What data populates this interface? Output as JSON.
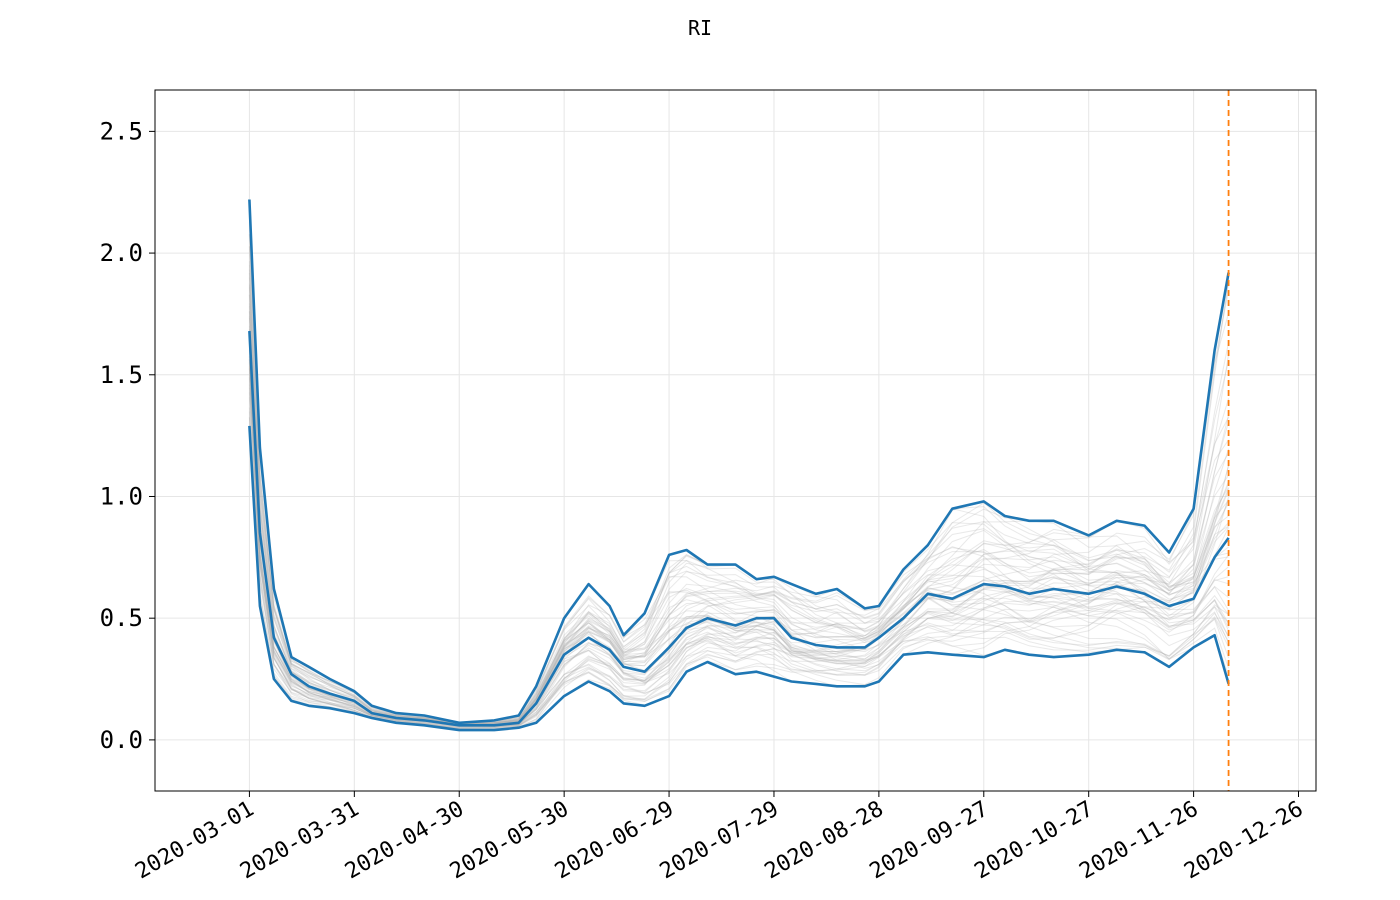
{
  "chart_data": {
    "type": "line",
    "title": "RI",
    "xlabel": "",
    "ylabel": "",
    "x_ticks": [
      "2020-03-01",
      "2020-03-31",
      "2020-04-30",
      "2020-05-30",
      "2020-06-29",
      "2020-07-29",
      "2020-08-28",
      "2020-09-27",
      "2020-10-27",
      "2020-11-26",
      "2020-12-26"
    ],
    "y_ticks": [
      "0.0",
      "0.5",
      "1.0",
      "1.5",
      "2.0",
      "2.5"
    ],
    "xlim": [
      "2020-02-03",
      "2020-12-31"
    ],
    "ylim": [
      -0.21,
      2.67
    ],
    "grid": true,
    "vertical_line": {
      "x": "2020-12-06",
      "color": "#ff7f0e",
      "style": "dashed"
    },
    "colors": {
      "band": "#1f77b4",
      "samples": "#b0b0b0",
      "marker_line": "#ff7f0e"
    },
    "series": [
      {
        "role": "upper",
        "x": [
          "2020-03-01",
          "2020-03-04",
          "2020-03-08",
          "2020-03-13",
          "2020-03-18",
          "2020-03-24",
          "2020-03-31",
          "2020-04-05",
          "2020-04-12",
          "2020-04-20",
          "2020-04-30",
          "2020-05-10",
          "2020-05-17",
          "2020-05-22",
          "2020-05-30",
          "2020-06-06",
          "2020-06-12",
          "2020-06-16",
          "2020-06-22",
          "2020-06-29",
          "2020-07-04",
          "2020-07-10",
          "2020-07-18",
          "2020-07-24",
          "2020-07-29",
          "2020-08-03",
          "2020-08-10",
          "2020-08-16",
          "2020-08-24",
          "2020-08-28",
          "2020-09-04",
          "2020-09-11",
          "2020-09-18",
          "2020-09-27",
          "2020-10-03",
          "2020-10-10",
          "2020-10-17",
          "2020-10-27",
          "2020-11-04",
          "2020-11-12",
          "2020-11-19",
          "2020-11-26",
          "2020-12-02",
          "2020-12-06"
        ],
        "values": [
          2.22,
          1.2,
          0.62,
          0.34,
          0.3,
          0.25,
          0.2,
          0.14,
          0.11,
          0.1,
          0.07,
          0.08,
          0.1,
          0.22,
          0.5,
          0.64,
          0.55,
          0.43,
          0.52,
          0.76,
          0.78,
          0.72,
          0.72,
          0.66,
          0.67,
          0.64,
          0.6,
          0.62,
          0.54,
          0.55,
          0.7,
          0.8,
          0.95,
          0.98,
          0.92,
          0.9,
          0.9,
          0.84,
          0.9,
          0.88,
          0.77,
          0.95,
          1.6,
          1.92
        ]
      },
      {
        "role": "median",
        "x": [
          "2020-03-01",
          "2020-03-04",
          "2020-03-08",
          "2020-03-13",
          "2020-03-18",
          "2020-03-24",
          "2020-03-31",
          "2020-04-05",
          "2020-04-12",
          "2020-04-20",
          "2020-04-30",
          "2020-05-10",
          "2020-05-17",
          "2020-05-22",
          "2020-05-30",
          "2020-06-06",
          "2020-06-12",
          "2020-06-16",
          "2020-06-22",
          "2020-06-29",
          "2020-07-04",
          "2020-07-10",
          "2020-07-18",
          "2020-07-24",
          "2020-07-29",
          "2020-08-03",
          "2020-08-10",
          "2020-08-16",
          "2020-08-24",
          "2020-08-28",
          "2020-09-04",
          "2020-09-11",
          "2020-09-18",
          "2020-09-27",
          "2020-10-03",
          "2020-10-10",
          "2020-10-17",
          "2020-10-27",
          "2020-11-04",
          "2020-11-12",
          "2020-11-19",
          "2020-11-26",
          "2020-12-02",
          "2020-12-06"
        ],
        "values": [
          1.68,
          0.85,
          0.42,
          0.27,
          0.22,
          0.19,
          0.16,
          0.11,
          0.09,
          0.08,
          0.06,
          0.06,
          0.07,
          0.15,
          0.35,
          0.42,
          0.37,
          0.3,
          0.28,
          0.38,
          0.46,
          0.5,
          0.47,
          0.5,
          0.5,
          0.42,
          0.39,
          0.38,
          0.38,
          0.42,
          0.5,
          0.6,
          0.58,
          0.64,
          0.63,
          0.6,
          0.62,
          0.6,
          0.63,
          0.6,
          0.55,
          0.58,
          0.75,
          0.83
        ]
      },
      {
        "role": "lower",
        "x": [
          "2020-03-01",
          "2020-03-04",
          "2020-03-08",
          "2020-03-13",
          "2020-03-18",
          "2020-03-24",
          "2020-03-31",
          "2020-04-05",
          "2020-04-12",
          "2020-04-20",
          "2020-04-30",
          "2020-05-10",
          "2020-05-17",
          "2020-05-22",
          "2020-05-30",
          "2020-06-06",
          "2020-06-12",
          "2020-06-16",
          "2020-06-22",
          "2020-06-29",
          "2020-07-04",
          "2020-07-10",
          "2020-07-18",
          "2020-07-24",
          "2020-07-29",
          "2020-08-03",
          "2020-08-10",
          "2020-08-16",
          "2020-08-24",
          "2020-08-28",
          "2020-09-04",
          "2020-09-11",
          "2020-09-18",
          "2020-09-27",
          "2020-10-03",
          "2020-10-10",
          "2020-10-17",
          "2020-10-27",
          "2020-11-04",
          "2020-11-12",
          "2020-11-19",
          "2020-11-26",
          "2020-12-02",
          "2020-12-06"
        ],
        "values": [
          1.29,
          0.55,
          0.25,
          0.16,
          0.14,
          0.13,
          0.11,
          0.09,
          0.07,
          0.06,
          0.04,
          0.04,
          0.05,
          0.07,
          0.18,
          0.24,
          0.2,
          0.15,
          0.14,
          0.18,
          0.28,
          0.32,
          0.27,
          0.28,
          0.26,
          0.24,
          0.23,
          0.22,
          0.22,
          0.24,
          0.35,
          0.36,
          0.35,
          0.34,
          0.37,
          0.35,
          0.34,
          0.35,
          0.37,
          0.36,
          0.3,
          0.38,
          0.43,
          0.23
        ]
      }
    ]
  }
}
